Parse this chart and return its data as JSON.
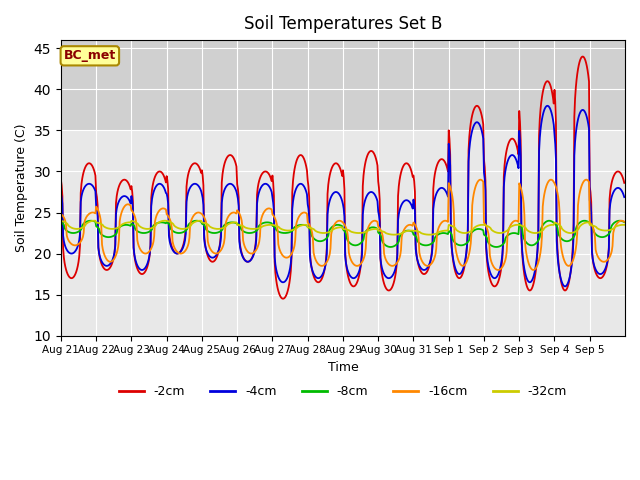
{
  "title": "Soil Temperatures Set B",
  "xlabel": "Time",
  "ylabel": "Soil Temperature (C)",
  "ylim": [
    10,
    46
  ],
  "yticks": [
    10,
    15,
    20,
    25,
    30,
    35,
    40,
    45
  ],
  "annotation": "BC_met",
  "series_labels": [
    "-2cm",
    "-4cm",
    "-8cm",
    "-16cm",
    "-32cm"
  ],
  "series_colors": [
    "#dd0000",
    "#0000dd",
    "#00bb00",
    "#ff8800",
    "#cccc00"
  ],
  "background_color": "#e8e8e8",
  "plot_bg_top": "#d8d8d8",
  "plot_bg_bottom": "#ebebeb",
  "x_tick_labels": [
    "Aug 21",
    "Aug 22",
    "Aug 23",
    "Aug 24",
    "Aug 25",
    "Aug 26",
    "Aug 27",
    "Aug 28",
    "Aug 29",
    "Aug 30",
    "Aug 31",
    "Sep 1",
    "Sep 2",
    "Sep 3",
    "Sep 4",
    "Sep 5"
  ],
  "num_days": 16,
  "pts_per_day": 48
}
